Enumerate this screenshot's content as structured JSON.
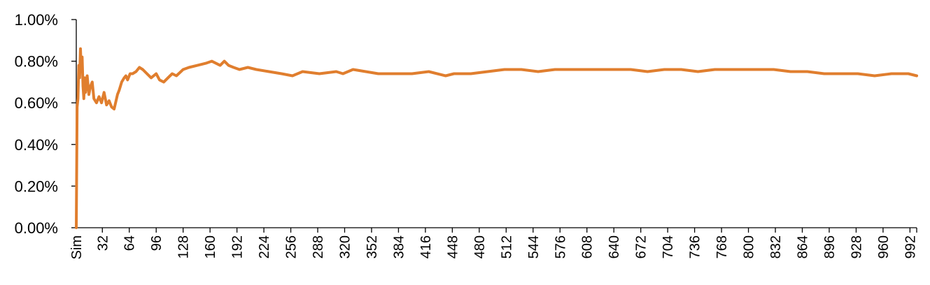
{
  "chart_data": {
    "type": "line",
    "title": "",
    "xlabel": "",
    "ylabel": "",
    "ylim": [
      0,
      0.01
    ],
    "y_ticks": [
      0,
      0.002,
      0.004,
      0.006,
      0.008,
      0.01
    ],
    "y_tick_labels": [
      "0.00%",
      "0.20%",
      "0.40%",
      "0.60%",
      "0.80%",
      "1.00%"
    ],
    "x_range": [
      1,
      1000
    ],
    "x_tick_values": [
      1,
      32,
      64,
      96,
      128,
      160,
      192,
      224,
      256,
      288,
      320,
      352,
      384,
      416,
      448,
      480,
      512,
      544,
      576,
      608,
      640,
      672,
      704,
      736,
      768,
      800,
      832,
      864,
      896,
      928,
      960,
      992
    ],
    "x_tick_labels": [
      "Sim",
      "32",
      "64",
      "96",
      "128",
      "160",
      "192",
      "224",
      "256",
      "288",
      "320",
      "352",
      "384",
      "416",
      "448",
      "480",
      "512",
      "544",
      "576",
      "608",
      "640",
      "672",
      "704",
      "736",
      "768",
      "800",
      "832",
      "864",
      "896",
      "928",
      "960",
      "992"
    ],
    "grid": false,
    "legend": "none",
    "series": [
      {
        "color": "#E07E2E",
        "x": [
          1,
          2,
          3,
          4,
          5,
          6,
          7,
          8,
          9,
          10,
          11,
          12,
          14,
          16,
          18,
          20,
          22,
          25,
          28,
          31,
          34,
          37,
          40,
          43,
          46,
          50,
          52,
          55,
          58,
          60,
          62,
          65,
          68,
          72,
          76,
          80,
          85,
          90,
          96,
          100,
          105,
          110,
          115,
          120,
          128,
          135,
          145,
          155,
          162,
          167,
          172,
          177,
          182,
          188,
          195,
          205,
          215,
          230,
          245,
          258,
          270,
          290,
          310,
          318,
          330,
          345,
          360,
          380,
          400,
          420,
          440,
          450,
          460,
          470,
          490,
          510,
          530,
          550,
          570,
          600,
          630,
          660,
          680,
          700,
          720,
          740,
          760,
          775,
          790,
          810,
          830,
          850,
          870,
          890,
          910,
          930,
          950,
          970,
          990,
          1000
        ],
        "values": [
          0.0,
          0.0058,
          0.0062,
          0.0078,
          0.0072,
          0.0086,
          0.0075,
          0.0082,
          0.0068,
          0.0062,
          0.0072,
          0.0065,
          0.0073,
          0.0064,
          0.0068,
          0.007,
          0.0062,
          0.006,
          0.0063,
          0.006,
          0.0065,
          0.0059,
          0.0061,
          0.0058,
          0.0057,
          0.0064,
          0.0066,
          0.007,
          0.0072,
          0.0073,
          0.0071,
          0.0074,
          0.0074,
          0.0075,
          0.0077,
          0.0076,
          0.0074,
          0.0072,
          0.0074,
          0.0071,
          0.007,
          0.0072,
          0.0074,
          0.0073,
          0.0076,
          0.0077,
          0.0078,
          0.0079,
          0.008,
          0.0079,
          0.0078,
          0.008,
          0.0078,
          0.0077,
          0.0076,
          0.0077,
          0.0076,
          0.0075,
          0.0074,
          0.0073,
          0.0075,
          0.0074,
          0.0075,
          0.0074,
          0.0076,
          0.0075,
          0.0074,
          0.0074,
          0.0074,
          0.0075,
          0.0073,
          0.0074,
          0.0074,
          0.0074,
          0.0075,
          0.0076,
          0.0076,
          0.0075,
          0.0076,
          0.0076,
          0.0076,
          0.0076,
          0.0075,
          0.0076,
          0.0076,
          0.0075,
          0.0076,
          0.0076,
          0.0076,
          0.0076,
          0.0076,
          0.0075,
          0.0075,
          0.0074,
          0.0074,
          0.0074,
          0.0073,
          0.0074,
          0.0074,
          0.0073
        ]
      }
    ]
  }
}
